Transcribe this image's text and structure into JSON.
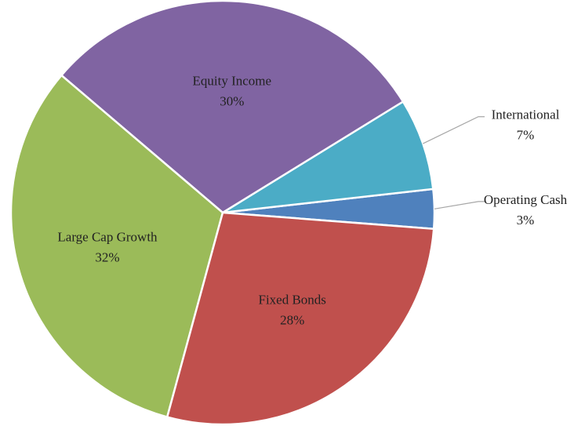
{
  "chart_data": {
    "type": "pie",
    "categories": [
      "Operating Cash",
      "International",
      "Equity Income",
      "Large Cap Growth",
      "Fixed Bonds"
    ],
    "values": [
      3,
      7,
      30,
      32,
      28
    ],
    "value_labels": [
      "3%",
      "7%",
      "30%",
      "32%",
      "28%"
    ],
    "colors": [
      "#4f81bd",
      "#4bacc6",
      "#8064a2",
      "#9bbb59",
      "#c0504d"
    ]
  }
}
